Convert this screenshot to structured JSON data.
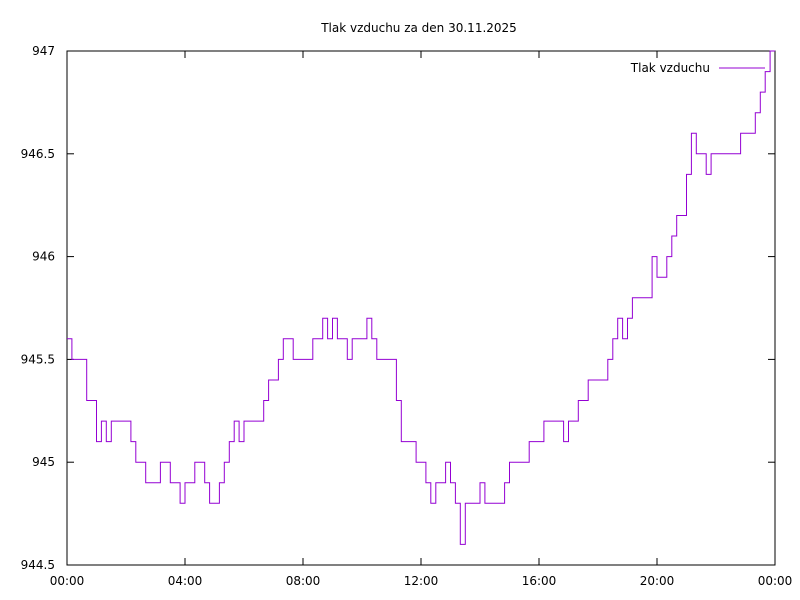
{
  "chart_data": {
    "type": "line",
    "title": "Tlak vzduchu za den 30.11.2025",
    "xlabel": "",
    "ylabel": "",
    "xlim": [
      "00:00",
      "24:00"
    ],
    "ylim": [
      944.5,
      947
    ],
    "xticks": [
      "00:00",
      "04:00",
      "08:00",
      "12:00",
      "16:00",
      "20:00",
      "00:00"
    ],
    "yticks": [
      "944.5",
      "945",
      "945.5",
      "946",
      "946.5",
      "947"
    ],
    "grid": false,
    "legend": "top-right",
    "series": [
      {
        "name": "Tlak vzduchu",
        "color": "#9400d3",
        "points": [
          [
            "00:00",
            945.6
          ],
          [
            "00:10",
            945.5
          ],
          [
            "00:20",
            945.5
          ],
          [
            "00:30",
            945.5
          ],
          [
            "00:40",
            945.3
          ],
          [
            "00:50",
            945.3
          ],
          [
            "01:00",
            945.1
          ],
          [
            "01:10",
            945.2
          ],
          [
            "01:20",
            945.1
          ],
          [
            "01:30",
            945.2
          ],
          [
            "01:40",
            945.2
          ],
          [
            "01:50",
            945.2
          ],
          [
            "02:00",
            945.2
          ],
          [
            "02:10",
            945.1
          ],
          [
            "02:20",
            945.0
          ],
          [
            "02:30",
            945.0
          ],
          [
            "02:40",
            944.9
          ],
          [
            "02:50",
            944.9
          ],
          [
            "03:00",
            944.9
          ],
          [
            "03:10",
            945.0
          ],
          [
            "03:20",
            945.0
          ],
          [
            "03:30",
            944.9
          ],
          [
            "03:40",
            944.9
          ],
          [
            "03:50",
            944.8
          ],
          [
            "04:00",
            944.9
          ],
          [
            "04:10",
            944.9
          ],
          [
            "04:20",
            945.0
          ],
          [
            "04:30",
            945.0
          ],
          [
            "04:40",
            944.9
          ],
          [
            "04:50",
            944.8
          ],
          [
            "05:00",
            944.8
          ],
          [
            "05:10",
            944.9
          ],
          [
            "05:20",
            945.0
          ],
          [
            "05:30",
            945.1
          ],
          [
            "05:40",
            945.2
          ],
          [
            "05:50",
            945.1
          ],
          [
            "06:00",
            945.2
          ],
          [
            "06:10",
            945.2
          ],
          [
            "06:20",
            945.2
          ],
          [
            "06:30",
            945.2
          ],
          [
            "06:40",
            945.3
          ],
          [
            "06:50",
            945.4
          ],
          [
            "07:00",
            945.4
          ],
          [
            "07:10",
            945.5
          ],
          [
            "07:20",
            945.6
          ],
          [
            "07:30",
            945.6
          ],
          [
            "07:40",
            945.5
          ],
          [
            "07:50",
            945.5
          ],
          [
            "08:00",
            945.5
          ],
          [
            "08:10",
            945.5
          ],
          [
            "08:20",
            945.6
          ],
          [
            "08:30",
            945.6
          ],
          [
            "08:40",
            945.7
          ],
          [
            "08:50",
            945.6
          ],
          [
            "09:00",
            945.7
          ],
          [
            "09:10",
            945.6
          ],
          [
            "09:20",
            945.6
          ],
          [
            "09:30",
            945.5
          ],
          [
            "09:40",
            945.6
          ],
          [
            "09:50",
            945.6
          ],
          [
            "10:00",
            945.6
          ],
          [
            "10:10",
            945.7
          ],
          [
            "10:20",
            945.6
          ],
          [
            "10:30",
            945.5
          ],
          [
            "10:40",
            945.5
          ],
          [
            "10:50",
            945.5
          ],
          [
            "11:00",
            945.5
          ],
          [
            "11:10",
            945.3
          ],
          [
            "11:20",
            945.1
          ],
          [
            "11:30",
            945.1
          ],
          [
            "11:40",
            945.1
          ],
          [
            "11:50",
            945.0
          ],
          [
            "12:00",
            945.0
          ],
          [
            "12:10",
            944.9
          ],
          [
            "12:20",
            944.8
          ],
          [
            "12:30",
            944.9
          ],
          [
            "12:40",
            944.9
          ],
          [
            "12:50",
            945.0
          ],
          [
            "13:00",
            944.9
          ],
          [
            "13:10",
            944.8
          ],
          [
            "13:20",
            944.6
          ],
          [
            "13:30",
            944.8
          ],
          [
            "13:40",
            944.8
          ],
          [
            "13:50",
            944.8
          ],
          [
            "14:00",
            944.9
          ],
          [
            "14:10",
            944.8
          ],
          [
            "14:20",
            944.8
          ],
          [
            "14:30",
            944.8
          ],
          [
            "14:40",
            944.8
          ],
          [
            "14:50",
            944.9
          ],
          [
            "15:00",
            945.0
          ],
          [
            "15:10",
            945.0
          ],
          [
            "15:20",
            945.0
          ],
          [
            "15:30",
            945.0
          ],
          [
            "15:40",
            945.1
          ],
          [
            "15:50",
            945.1
          ],
          [
            "16:00",
            945.1
          ],
          [
            "16:10",
            945.2
          ],
          [
            "16:20",
            945.2
          ],
          [
            "16:30",
            945.2
          ],
          [
            "16:40",
            945.2
          ],
          [
            "16:50",
            945.1
          ],
          [
            "17:00",
            945.2
          ],
          [
            "17:10",
            945.2
          ],
          [
            "17:20",
            945.3
          ],
          [
            "17:30",
            945.3
          ],
          [
            "17:40",
            945.4
          ],
          [
            "17:50",
            945.4
          ],
          [
            "18:00",
            945.4
          ],
          [
            "18:10",
            945.4
          ],
          [
            "18:20",
            945.5
          ],
          [
            "18:30",
            945.6
          ],
          [
            "18:40",
            945.7
          ],
          [
            "18:50",
            945.6
          ],
          [
            "19:00",
            945.7
          ],
          [
            "19:10",
            945.8
          ],
          [
            "19:20",
            945.8
          ],
          [
            "19:30",
            945.8
          ],
          [
            "19:40",
            945.8
          ],
          [
            "19:50",
            946.0
          ],
          [
            "20:00",
            945.9
          ],
          [
            "20:10",
            945.9
          ],
          [
            "20:20",
            946.0
          ],
          [
            "20:30",
            946.1
          ],
          [
            "20:40",
            946.2
          ],
          [
            "20:50",
            946.2
          ],
          [
            "21:00",
            946.4
          ],
          [
            "21:10",
            946.6
          ],
          [
            "21:20",
            946.5
          ],
          [
            "21:30",
            946.5
          ],
          [
            "21:40",
            946.4
          ],
          [
            "21:50",
            946.5
          ],
          [
            "22:00",
            946.5
          ],
          [
            "22:10",
            946.5
          ],
          [
            "22:20",
            946.5
          ],
          [
            "22:30",
            946.5
          ],
          [
            "22:40",
            946.5
          ],
          [
            "22:50",
            946.6
          ],
          [
            "23:00",
            946.6
          ],
          [
            "23:10",
            946.6
          ],
          [
            "23:20",
            946.7
          ],
          [
            "23:30",
            946.8
          ],
          [
            "23:40",
            946.9
          ],
          [
            "23:50",
            947.0
          ]
        ]
      }
    ]
  }
}
